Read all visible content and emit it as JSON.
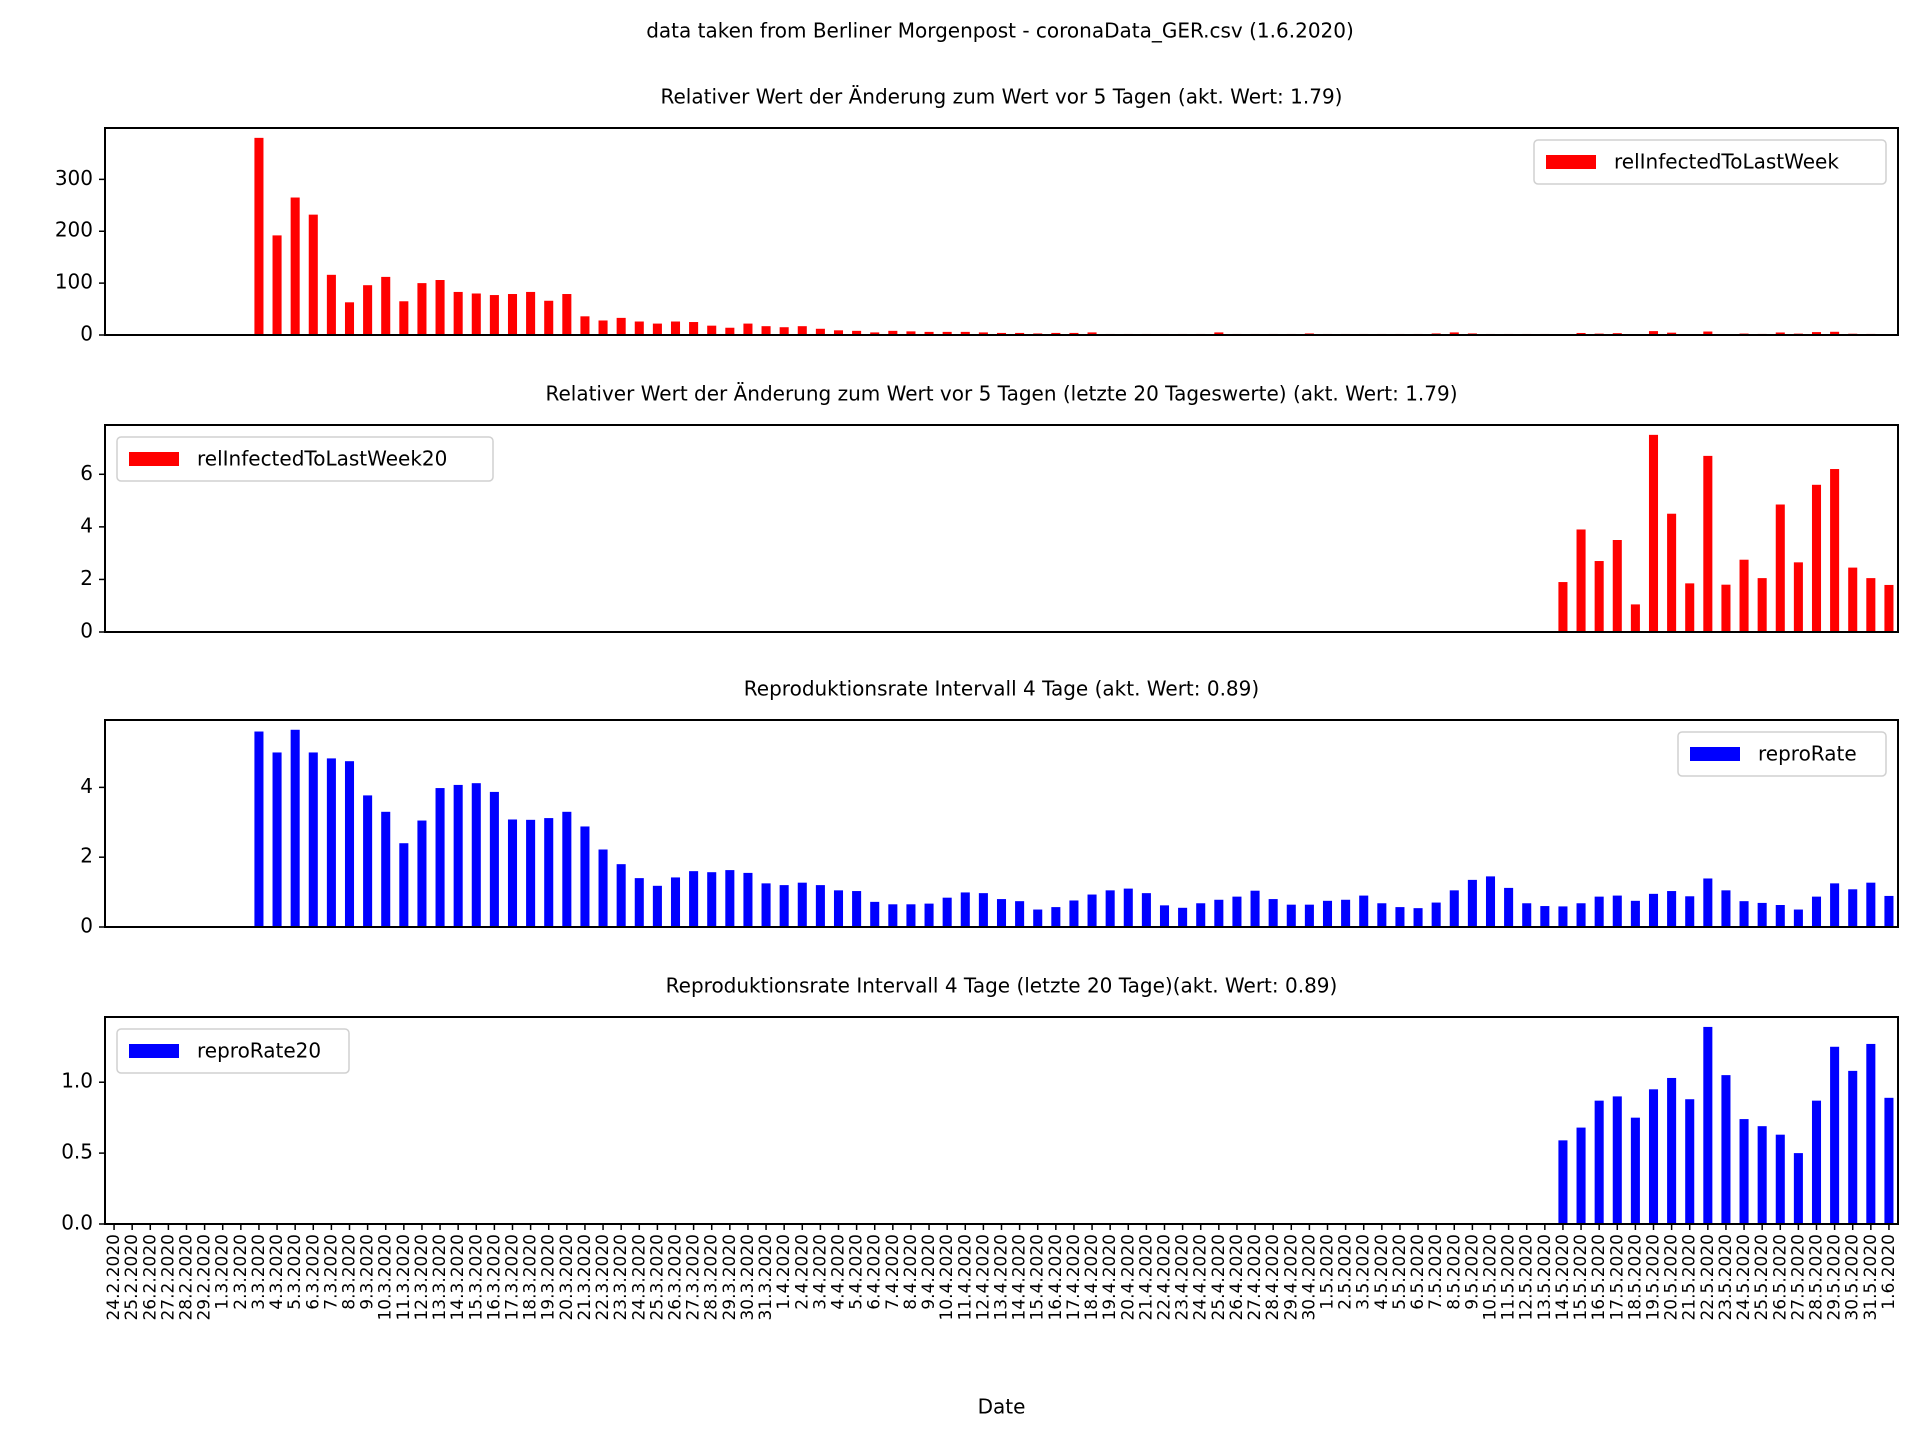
{
  "title": "data taken from Berliner Morgenpost - coronaData_GER.csv (1.6.2020)",
  "chart_data": [
    {
      "type": "bar",
      "title": "Relativer Wert der Änderung zum Wert vor 5 Tagen (akt. Wert: 1.79)",
      "legend": "upper right",
      "ylim": [
        0,
        399
      ],
      "yticks": [
        0,
        100,
        200,
        300
      ],
      "series": [
        {
          "name": "relInfectedToLastWeek",
          "color": "#ff0000",
          "values": [
            null,
            null,
            null,
            null,
            null,
            null,
            null,
            null,
            380,
            192,
            265,
            232,
            116,
            63,
            96,
            112,
            65,
            100,
            106,
            83,
            80,
            77,
            79,
            83,
            66,
            79,
            36,
            28,
            33,
            26,
            22,
            26,
            25,
            18,
            14,
            22,
            17,
            15,
            17,
            12,
            9,
            8,
            5,
            8,
            7,
            6,
            6,
            6,
            5,
            4,
            4,
            3,
            4,
            4,
            5,
            2,
            2,
            2,
            2,
            2,
            2,
            5,
            2,
            2,
            2,
            2,
            3,
            2,
            2,
            2,
            2,
            2,
            2,
            3,
            5,
            3,
            2,
            2,
            2,
            2,
            1.9,
            3.9,
            2.7,
            3.5,
            1.05,
            7.5,
            4.5,
            1.85,
            6.7,
            1.8,
            2.75,
            2.05,
            4.85,
            2.65,
            5.6,
            6.2,
            2.45,
            2.05,
            1.79
          ]
        }
      ]
    },
    {
      "type": "bar",
      "title": "Relativer Wert der Änderung zum Wert vor 5 Tagen (letzte 20 Tageswerte) (akt. Wert: 1.79)",
      "legend": "upper left",
      "ylim": [
        0,
        7.875
      ],
      "yticks": [
        0,
        2,
        4,
        6
      ],
      "series": [
        {
          "name": "relInfectedToLastWeek20",
          "color": "#ff0000",
          "values": [
            null,
            null,
            null,
            null,
            null,
            null,
            null,
            null,
            null,
            null,
            null,
            null,
            null,
            null,
            null,
            null,
            null,
            null,
            null,
            null,
            null,
            null,
            null,
            null,
            null,
            null,
            null,
            null,
            null,
            null,
            null,
            null,
            null,
            null,
            null,
            null,
            null,
            null,
            null,
            null,
            null,
            null,
            null,
            null,
            null,
            null,
            null,
            null,
            null,
            null,
            null,
            null,
            null,
            null,
            null,
            null,
            null,
            null,
            null,
            null,
            null,
            null,
            null,
            null,
            null,
            null,
            null,
            null,
            null,
            null,
            null,
            null,
            null,
            null,
            null,
            null,
            null,
            null,
            null,
            null,
            1.9,
            3.9,
            2.7,
            3.5,
            1.05,
            7.5,
            4.5,
            1.85,
            6.7,
            1.8,
            2.75,
            2.05,
            4.85,
            2.65,
            5.6,
            6.2,
            2.45,
            2.05,
            1.79
          ]
        }
      ]
    },
    {
      "type": "bar",
      "title": "Reproduktionsrate Intervall 4 Tage (akt. Wert: 0.89)",
      "legend": "upper right",
      "ylim": [
        0,
        5.93
      ],
      "yticks": [
        0,
        2,
        4
      ],
      "series": [
        {
          "name": "reproRate",
          "color": "#0000ff",
          "values": [
            null,
            null,
            null,
            null,
            null,
            null,
            null,
            null,
            5.6,
            5.0,
            5.65,
            5.0,
            4.83,
            4.75,
            3.77,
            3.3,
            2.4,
            3.05,
            3.98,
            4.07,
            4.12,
            3.87,
            3.08,
            3.07,
            3.12,
            3.3,
            2.88,
            2.22,
            1.8,
            1.4,
            1.18,
            1.42,
            1.6,
            1.57,
            1.63,
            1.55,
            1.25,
            1.2,
            1.27,
            1.2,
            1.05,
            1.03,
            0.72,
            0.65,
            0.65,
            0.67,
            0.84,
            0.99,
            0.97,
            0.8,
            0.74,
            0.5,
            0.57,
            0.76,
            0.93,
            1.05,
            1.1,
            0.97,
            0.62,
            0.55,
            0.68,
            0.78,
            0.87,
            1.04,
            0.8,
            0.64,
            0.64,
            0.75,
            0.78,
            0.9,
            0.68,
            0.57,
            0.54,
            0.7,
            1.05,
            1.35,
            1.45,
            1.12,
            0.68,
            0.6,
            0.59,
            0.68,
            0.87,
            0.9,
            0.75,
            0.95,
            1.03,
            0.88,
            1.39,
            1.05,
            0.74,
            0.69,
            0.63,
            0.5,
            0.87,
            1.25,
            1.08,
            1.27,
            0.89
          ]
        }
      ]
    },
    {
      "type": "bar",
      "title": "Reproduktionsrate Intervall 4 Tage (letzte 20 Tage)(akt. Wert: 0.89)",
      "legend": "upper left",
      "xlabel": "Date",
      "categories": [
        "24.2.2020",
        "25.2.2020",
        "26.2.2020",
        "27.2.2020",
        "28.2.2020",
        "29.2.2020",
        "1.3.2020",
        "2.3.2020",
        "3.3.2020",
        "4.3.2020",
        "5.3.2020",
        "6.3.2020",
        "7.3.2020",
        "8.3.2020",
        "9.3.2020",
        "10.3.2020",
        "11.3.2020",
        "12.3.2020",
        "13.3.2020",
        "14.3.2020",
        "15.3.2020",
        "16.3.2020",
        "17.3.2020",
        "18.3.2020",
        "19.3.2020",
        "20.3.2020",
        "21.3.2020",
        "22.3.2020",
        "23.3.2020",
        "24.3.2020",
        "25.3.2020",
        "26.3.2020",
        "27.3.2020",
        "28.3.2020",
        "29.3.2020",
        "30.3.2020",
        "31.3.2020",
        "1.4.2020",
        "2.4.2020",
        "3.4.2020",
        "4.4.2020",
        "5.4.2020",
        "6.4.2020",
        "7.4.2020",
        "8.4.2020",
        "9.4.2020",
        "10.4.2020",
        "11.4.2020",
        "12.4.2020",
        "13.4.2020",
        "14.4.2020",
        "15.4.2020",
        "16.4.2020",
        "17.4.2020",
        "18.4.2020",
        "19.4.2020",
        "20.4.2020",
        "21.4.2020",
        "22.4.2020",
        "23.4.2020",
        "24.4.2020",
        "25.4.2020",
        "26.4.2020",
        "27.4.2020",
        "28.4.2020",
        "29.4.2020",
        "30.4.2020",
        "1.5.2020",
        "2.5.2020",
        "3.5.2020",
        "4.5.2020",
        "5.5.2020",
        "6.5.2020",
        "7.5.2020",
        "8.5.2020",
        "9.5.2020",
        "10.5.2020",
        "11.5.2020",
        "12.5.2020",
        "13.5.2020",
        "14.5.2020",
        "15.5.2020",
        "16.5.2020",
        "17.5.2020",
        "18.5.2020",
        "19.5.2020",
        "20.5.2020",
        "21.5.2020",
        "22.5.2020",
        "23.5.2020",
        "24.5.2020",
        "25.5.2020",
        "26.5.2020",
        "27.5.2020",
        "28.5.2020",
        "29.5.2020",
        "30.5.2020",
        "31.5.2020",
        "1.6.2020"
      ],
      "ylim": [
        0,
        1.46
      ],
      "yticks": [
        {
          "value": 0,
          "label": "0.0"
        },
        0.5,
        {
          "value": 1,
          "label": "1.0"
        }
      ],
      "series": [
        {
          "name": "reproRate20",
          "color": "#0000ff",
          "values": [
            null,
            null,
            null,
            null,
            null,
            null,
            null,
            null,
            null,
            null,
            null,
            null,
            null,
            null,
            null,
            null,
            null,
            null,
            null,
            null,
            null,
            null,
            null,
            null,
            null,
            null,
            null,
            null,
            null,
            null,
            null,
            null,
            null,
            null,
            null,
            null,
            null,
            null,
            null,
            null,
            null,
            null,
            null,
            null,
            null,
            null,
            null,
            null,
            null,
            null,
            null,
            null,
            null,
            null,
            null,
            null,
            null,
            null,
            null,
            null,
            null,
            null,
            null,
            null,
            null,
            null,
            null,
            null,
            null,
            null,
            null,
            null,
            null,
            null,
            null,
            null,
            null,
            null,
            null,
            null,
            0.59,
            0.68,
            0.87,
            0.9,
            0.75,
            0.95,
            1.03,
            0.88,
            1.39,
            1.05,
            0.74,
            0.69,
            0.63,
            0.5,
            0.87,
            1.25,
            1.08,
            1.27,
            0.89
          ]
        }
      ]
    }
  ]
}
